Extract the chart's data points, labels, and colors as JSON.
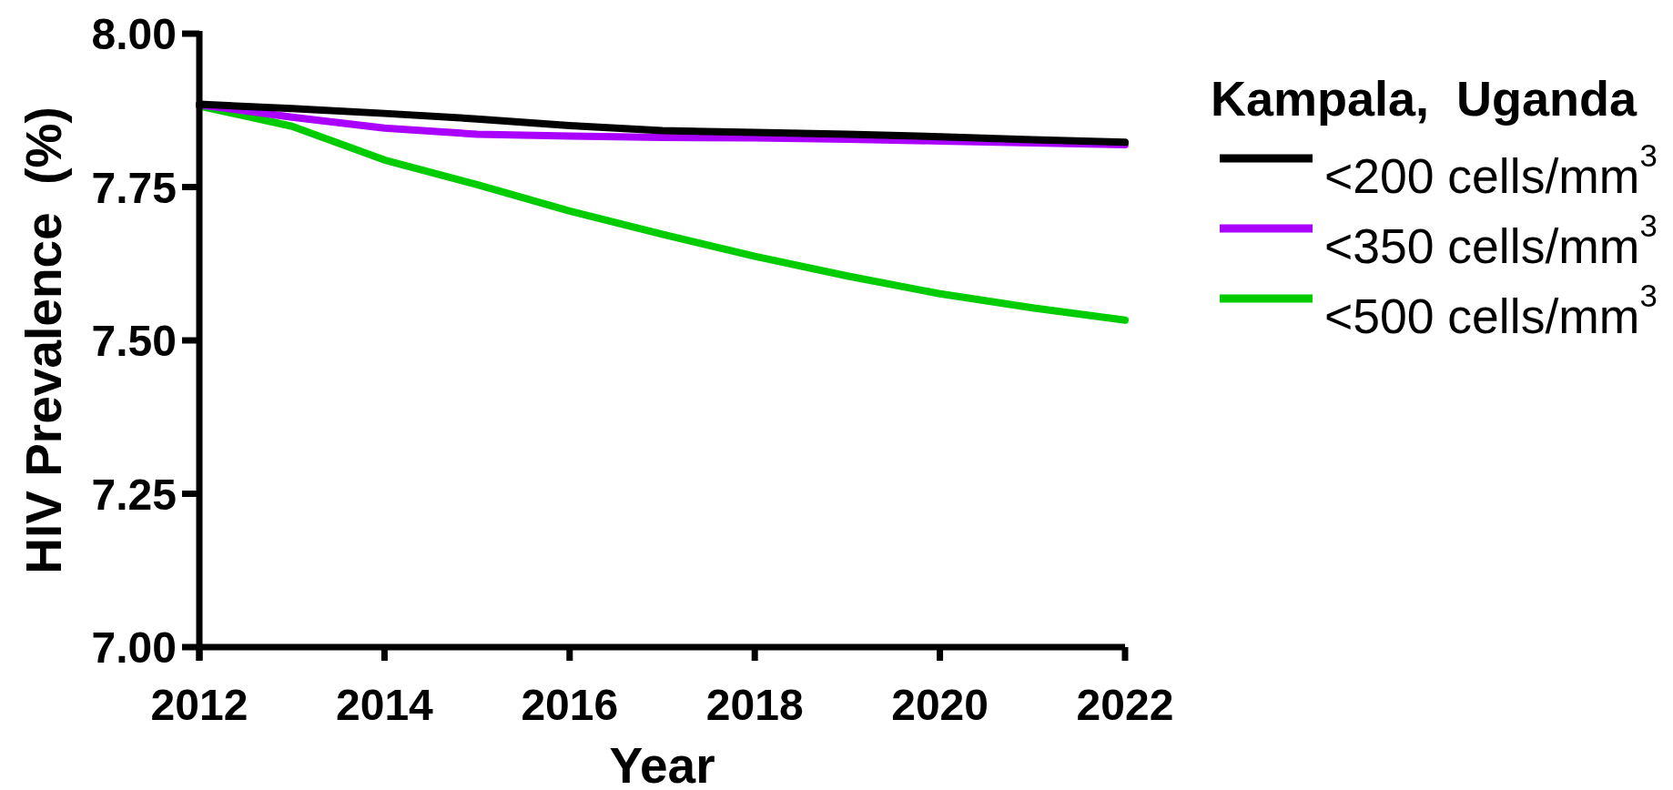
{
  "chart_data": {
    "type": "line",
    "xlabel": "Year",
    "ylabel": "HIV Prevalence  (%)",
    "legend_title": "Kampala,  Uganda",
    "x": [
      2012,
      2013,
      2014,
      2015,
      2016,
      2017,
      2018,
      2019,
      2020,
      2021,
      2022
    ],
    "series": [
      {
        "name": "<200 cells/mm$^{3}$",
        "color": "#000000",
        "values": [
          7.885,
          7.878,
          7.87,
          7.861,
          7.85,
          7.842,
          7.839,
          7.836,
          7.832,
          7.827,
          7.823
        ]
      },
      {
        "name": "<350 cells/mm$^{3}$",
        "color": "#aa00ff",
        "values": [
          7.884,
          7.864,
          7.846,
          7.836,
          7.833,
          7.831,
          7.83,
          7.828,
          7.825,
          7.822,
          7.819
        ]
      },
      {
        "name": "<500 cells/mm$^{3}$",
        "color": "#00cc00",
        "values": [
          7.882,
          7.849,
          7.794,
          7.754,
          7.711,
          7.673,
          7.637,
          7.605,
          7.576,
          7.553,
          7.533
        ]
      }
    ],
    "xlim": [
      2012,
      2022
    ],
    "xticks": [
      2012,
      2014,
      2016,
      2018,
      2020,
      2022
    ],
    "ylim": [
      7,
      8
    ],
    "yticks": [
      {
        "value": 7,
        "label": "7.00"
      },
      {
        "value": 7.25,
        "label": "7.25"
      },
      {
        "value": 7.5,
        "label": "7.50"
      },
      {
        "value": 7.75,
        "label": "7.75"
      },
      {
        "value": 8,
        "label": "8.00"
      }
    ],
    "legend": "right",
    "line_style": "solid"
  }
}
